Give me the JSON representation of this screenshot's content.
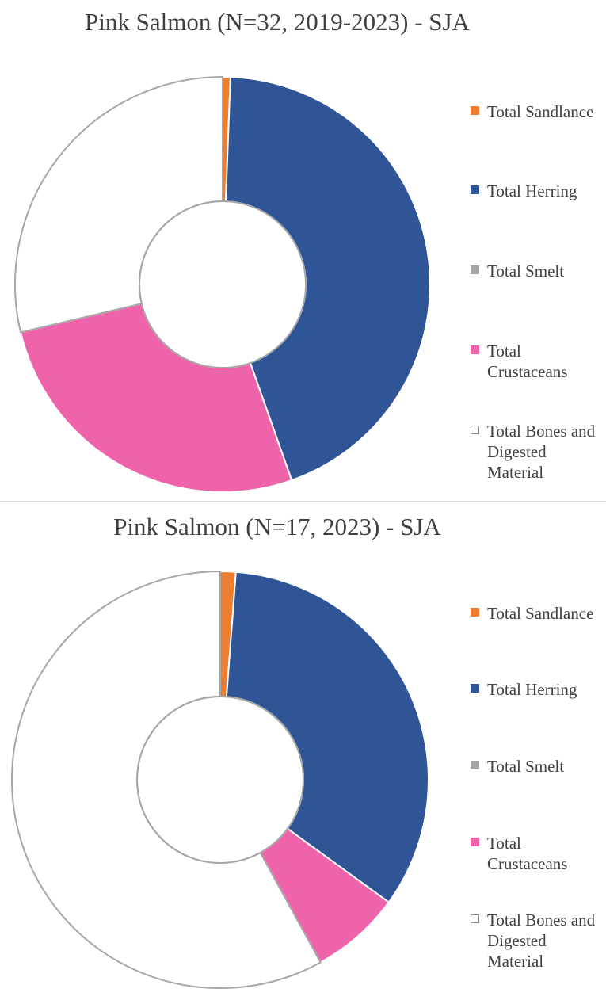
{
  "chart_data": [
    {
      "type": "donut",
      "title": "Pink Salmon (N=32, 2019-2023) - SJA",
      "categories": [
        "Total Sandlance",
        "Total Herring",
        "Total Smelt",
        "Total Crustaceans",
        "Total Bones and Digested Material"
      ],
      "values": [
        0.6,
        44.0,
        0.0,
        26.7,
        28.7
      ],
      "unit": "%",
      "colors": [
        "#ed7d31",
        "#2f5597",
        "#a5a5a5",
        "#ee63aa",
        "#ffffff"
      ],
      "legend_position": "right"
    },
    {
      "type": "donut",
      "title": "Pink Salmon (N=17, 2023) - SJA",
      "categories": [
        "Total Sandlance",
        "Total Herring",
        "Total Smelt",
        "Total Crustaceans",
        "Total Bones and Digested Material"
      ],
      "values": [
        1.2,
        33.8,
        0.0,
        7.0,
        58.0
      ],
      "unit": "%",
      "colors": [
        "#ed7d31",
        "#2f5597",
        "#a5a5a5",
        "#ee63aa",
        "#ffffff"
      ],
      "legend_position": "right"
    }
  ]
}
